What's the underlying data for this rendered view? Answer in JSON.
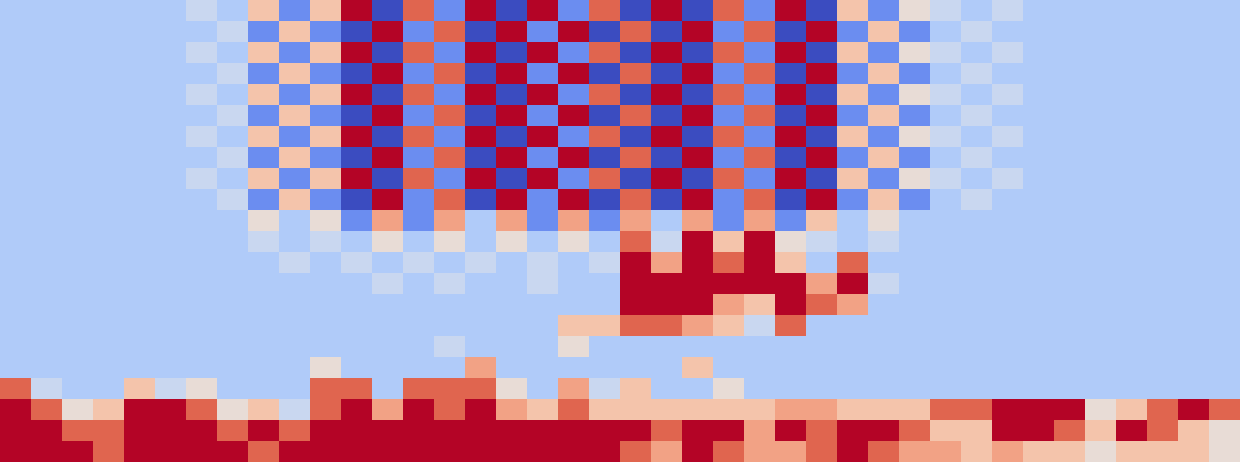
{
  "chart_data": {
    "type": "heatmap",
    "tick_labels": false,
    "zlim": [
      0,
      10
    ],
    "z": [
      [
        3,
        3,
        3,
        3,
        3,
        3,
        4,
        3,
        6,
        2,
        6,
        9,
        1,
        8,
        2,
        9,
        1,
        9,
        2,
        8,
        1,
        9,
        1,
        8,
        2,
        9,
        1,
        6,
        2,
        5,
        4,
        3,
        4,
        3,
        3,
        3,
        3,
        3,
        3,
        3
      ],
      [
        3,
        3,
        3,
        3,
        3,
        3,
        3,
        4,
        2,
        6,
        2,
        1,
        9,
        2,
        8,
        1,
        9,
        2,
        9,
        1,
        8,
        1,
        9,
        2,
        8,
        1,
        9,
        2,
        6,
        2,
        3,
        4,
        3,
        3,
        3,
        3,
        3,
        3,
        3,
        3
      ],
      [
        3,
        3,
        3,
        3,
        3,
        3,
        4,
        3,
        6,
        2,
        6,
        9,
        1,
        8,
        2,
        9,
        1,
        9,
        2,
        8,
        1,
        9,
        1,
        8,
        2,
        9,
        1,
        6,
        2,
        5,
        4,
        3,
        4,
        3,
        3,
        3,
        3,
        3,
        3,
        3
      ],
      [
        3,
        3,
        3,
        3,
        3,
        3,
        3,
        4,
        2,
        6,
        2,
        1,
        9,
        2,
        8,
        1,
        9,
        2,
        9,
        1,
        8,
        1,
        9,
        2,
        8,
        1,
        9,
        2,
        6,
        2,
        3,
        4,
        3,
        3,
        3,
        3,
        3,
        3,
        3,
        3
      ],
      [
        3,
        3,
        3,
        3,
        3,
        3,
        4,
        3,
        6,
        2,
        6,
        9,
        1,
        8,
        2,
        9,
        1,
        9,
        2,
        8,
        1,
        9,
        1,
        8,
        2,
        9,
        1,
        6,
        2,
        5,
        4,
        3,
        4,
        3,
        3,
        3,
        3,
        3,
        3,
        3
      ],
      [
        3,
        3,
        3,
        3,
        3,
        3,
        3,
        4,
        2,
        6,
        2,
        1,
        9,
        2,
        8,
        1,
        9,
        2,
        9,
        1,
        8,
        1,
        9,
        2,
        8,
        1,
        9,
        2,
        6,
        2,
        3,
        4,
        3,
        3,
        3,
        3,
        3,
        3,
        3,
        3
      ],
      [
        3,
        3,
        3,
        3,
        3,
        3,
        4,
        3,
        6,
        2,
        6,
        9,
        1,
        8,
        2,
        9,
        1,
        9,
        2,
        8,
        1,
        9,
        1,
        8,
        2,
        9,
        1,
        6,
        2,
        5,
        4,
        3,
        4,
        3,
        3,
        3,
        3,
        3,
        3,
        3
      ],
      [
        3,
        3,
        3,
        3,
        3,
        3,
        3,
        4,
        2,
        6,
        2,
        1,
        9,
        2,
        8,
        1,
        9,
        2,
        9,
        1,
        8,
        1,
        9,
        2,
        8,
        1,
        9,
        2,
        6,
        2,
        3,
        4,
        3,
        3,
        3,
        3,
        3,
        3,
        3,
        3
      ],
      [
        3,
        3,
        3,
        3,
        3,
        3,
        4,
        3,
        6,
        2,
        6,
        9,
        1,
        8,
        2,
        9,
        1,
        9,
        2,
        8,
        1,
        9,
        1,
        8,
        2,
        9,
        1,
        6,
        2,
        5,
        4,
        3,
        4,
        3,
        3,
        3,
        3,
        3,
        3,
        3
      ],
      [
        3,
        3,
        3,
        3,
        3,
        3,
        3,
        4,
        2,
        6,
        2,
        1,
        9,
        2,
        8,
        1,
        9,
        2,
        9,
        1,
        8,
        1,
        9,
        2,
        8,
        1,
        9,
        2,
        6,
        2,
        3,
        4,
        3,
        3,
        3,
        3,
        3,
        3,
        3,
        3
      ],
      [
        3,
        3,
        3,
        3,
        3,
        3,
        3,
        3,
        5,
        3,
        5,
        2,
        7,
        2,
        7,
        3,
        7,
        2,
        7,
        2,
        7,
        3,
        7,
        2,
        7,
        2,
        6,
        3,
        5,
        3,
        3,
        3,
        3,
        3,
        3,
        3,
        3,
        3,
        3,
        3
      ],
      [
        3,
        3,
        3,
        3,
        3,
        3,
        3,
        3,
        4,
        3,
        4,
        3,
        5,
        3,
        5,
        3,
        5,
        3,
        5,
        3,
        8,
        4,
        9,
        6,
        9,
        5,
        4,
        3,
        4,
        3,
        3,
        3,
        3,
        3,
        3,
        3,
        3,
        3,
        3,
        3
      ],
      [
        3,
        3,
        3,
        3,
        3,
        3,
        3,
        3,
        3,
        4,
        3,
        4,
        3,
        4,
        3,
        4,
        3,
        4,
        3,
        4,
        9,
        7,
        9,
        8,
        9,
        6,
        3,
        8,
        3,
        3,
        3,
        3,
        3,
        3,
        3,
        3,
        3,
        3,
        3,
        3
      ],
      [
        3,
        3,
        3,
        3,
        3,
        3,
        3,
        3,
        3,
        3,
        3,
        3,
        4,
        3,
        4,
        3,
        3,
        4,
        3,
        3,
        9,
        9,
        9,
        9,
        9,
        9,
        7,
        9,
        4,
        3,
        3,
        3,
        3,
        3,
        3,
        3,
        3,
        3,
        3,
        3
      ],
      [
        3,
        3,
        3,
        3,
        3,
        3,
        3,
        3,
        3,
        3,
        3,
        3,
        3,
        3,
        3,
        3,
        3,
        3,
        3,
        3,
        9,
        9,
        9,
        7,
        6,
        9,
        8,
        7,
        3,
        3,
        3,
        3,
        3,
        3,
        3,
        3,
        3,
        3,
        3,
        3
      ],
      [
        3,
        3,
        3,
        3,
        3,
        3,
        3,
        3,
        3,
        3,
        3,
        3,
        3,
        3,
        3,
        3,
        3,
        3,
        6,
        6,
        8,
        8,
        7,
        6,
        4,
        8,
        3,
        3,
        3,
        3,
        3,
        3,
        3,
        3,
        3,
        3,
        3,
        3,
        3,
        3
      ],
      [
        3,
        3,
        3,
        3,
        3,
        3,
        3,
        3,
        3,
        3,
        3,
        3,
        3,
        3,
        4,
        3,
        3,
        3,
        5,
        3,
        3,
        3,
        3,
        3,
        3,
        3,
        3,
        3,
        3,
        3,
        3,
        3,
        3,
        3,
        3,
        3,
        3,
        3,
        3,
        3
      ],
      [
        3,
        3,
        3,
        3,
        3,
        3,
        3,
        3,
        3,
        3,
        5,
        3,
        3,
        3,
        3,
        7,
        3,
        3,
        3,
        3,
        3,
        3,
        6,
        3,
        3,
        3,
        3,
        3,
        3,
        3,
        3,
        3,
        3,
        3,
        3,
        3,
        3,
        3,
        3,
        3
      ],
      [
        8,
        4,
        3,
        3,
        6,
        4,
        5,
        3,
        3,
        3,
        8,
        8,
        3,
        8,
        8,
        8,
        5,
        3,
        7,
        4,
        6,
        3,
        3,
        5,
        3,
        3,
        3,
        3,
        3,
        3,
        3,
        3,
        3,
        3,
        3,
        3,
        3,
        3,
        3,
        3
      ],
      [
        9,
        8,
        5,
        6,
        9,
        9,
        8,
        5,
        6,
        4,
        8,
        9,
        7,
        9,
        8,
        9,
        7,
        6,
        8,
        6,
        6,
        6,
        6,
        6,
        6,
        7,
        7,
        6,
        6,
        6,
        8,
        8,
        9,
        9,
        9,
        5,
        6,
        8,
        9,
        8
      ],
      [
        9,
        9,
        8,
        8,
        9,
        9,
        9,
        8,
        9,
        8,
        9,
        9,
        9,
        9,
        9,
        9,
        9,
        9,
        9,
        9,
        9,
        8,
        9,
        9,
        7,
        9,
        8,
        9,
        9,
        8,
        6,
        6,
        9,
        9,
        8,
        6,
        9,
        8,
        6,
        5
      ],
      [
        9,
        9,
        9,
        8,
        9,
        9,
        9,
        9,
        8,
        9,
        9,
        9,
        9,
        9,
        9,
        9,
        9,
        9,
        9,
        9,
        8,
        7,
        9,
        8,
        7,
        7,
        8,
        9,
        8,
        7,
        7,
        6,
        7,
        6,
        6,
        5,
        6,
        6,
        6,
        5
      ]
    ]
  }
}
